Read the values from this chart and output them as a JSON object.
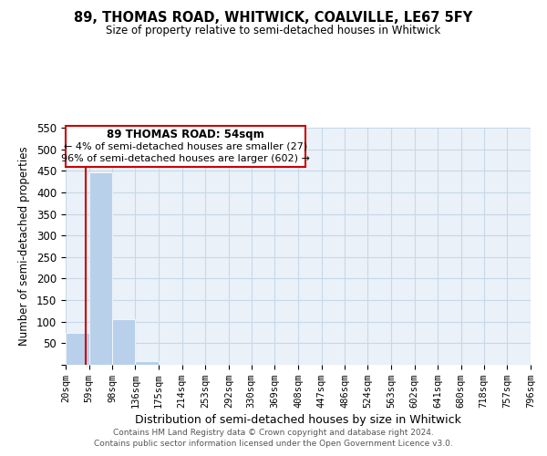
{
  "title": "89, THOMAS ROAD, WHITWICK, COALVILLE, LE67 5FY",
  "subtitle": "Size of property relative to semi-detached houses in Whitwick",
  "xlabel": "Distribution of semi-detached houses by size in Whitwick",
  "ylabel": "Number of semi-detached properties",
  "bin_edges": [
    20,
    59,
    98,
    136,
    175,
    214,
    253,
    292,
    330,
    369,
    408,
    447,
    486,
    524,
    563,
    602,
    641,
    680,
    718,
    757,
    796
  ],
  "bar_heights": [
    75,
    447,
    106,
    8,
    0,
    0,
    0,
    0,
    0,
    0,
    0,
    0,
    0,
    0,
    0,
    0,
    0,
    0,
    0,
    1
  ],
  "bar_color": "#b8d0ea",
  "grid_color": "#c8d8e8",
  "bg_color": "#eaf1f8",
  "property_line_x": 54,
  "property_line_color": "#cc0000",
  "annotation_box_edge_color": "#cc0000",
  "annotation_title": "89 THOMAS ROAD: 54sqm",
  "annotation_line1": "← 4% of semi-detached houses are smaller (27)",
  "annotation_line2": "96% of semi-detached houses are larger (602) →",
  "ylim": [
    0,
    550
  ],
  "yticks": [
    0,
    50,
    100,
    150,
    200,
    250,
    300,
    350,
    400,
    450,
    500,
    550
  ],
  "tick_labels": [
    "20sqm",
    "59sqm",
    "98sqm",
    "136sqm",
    "175sqm",
    "214sqm",
    "253sqm",
    "292sqm",
    "330sqm",
    "369sqm",
    "408sqm",
    "447sqm",
    "486sqm",
    "524sqm",
    "563sqm",
    "602sqm",
    "641sqm",
    "680sqm",
    "718sqm",
    "757sqm",
    "796sqm"
  ],
  "footer_line1": "Contains HM Land Registry data © Crown copyright and database right 2024.",
  "footer_line2": "Contains public sector information licensed under the Open Government Licence v3.0."
}
